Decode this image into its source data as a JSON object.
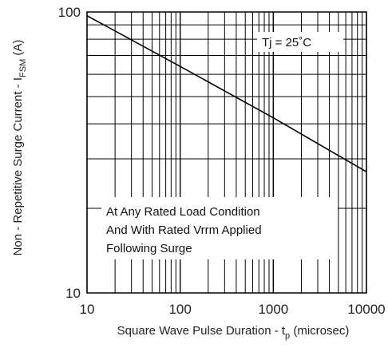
{
  "chart_data": {
    "type": "line",
    "title": "",
    "xlabel": {
      "main": "Square Wave Pulse Duration - t",
      "sub": "p",
      "unit": " (microsec)"
    },
    "ylabel": {
      "main": "Non - Repetitive Surge Current - I",
      "sub": "FSM",
      "unit": " (A)"
    },
    "x_scale": "log",
    "y_scale": "log",
    "xlim": [
      10,
      10000
    ],
    "ylim": [
      10,
      100
    ],
    "grid": true,
    "x_ticks": [
      "10",
      "100",
      "1000",
      "10000"
    ],
    "y_ticks": [
      "10",
      "100"
    ],
    "series": [
      {
        "x": [
          10,
          100,
          1000,
          10000
        ],
        "values": [
          97,
          64,
          42,
          27
        ]
      }
    ],
    "annotations": {
      "temperature": "Tj = 25˚C",
      "condition_lines": [
        "At Any Rated Load Condition",
        "And With Rated Vrrm Applied",
        "Following Surge"
      ]
    }
  }
}
